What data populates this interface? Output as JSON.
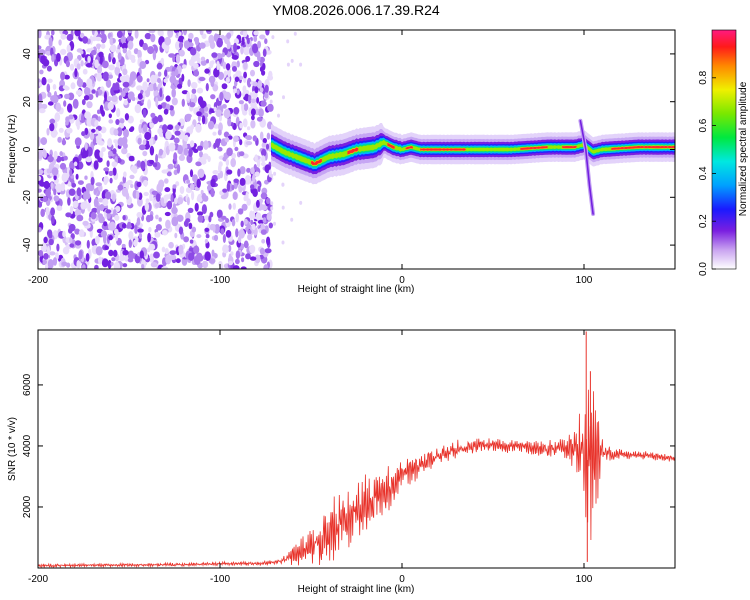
{
  "figure": {
    "title": "YM08.2026.006.17.39.R24"
  },
  "colorbar": {
    "label": "Normalized spectral amplitude",
    "range": [
      0,
      1
    ],
    "ticks": [
      "0.0",
      "0.2",
      "0.4",
      "0.6",
      "0.8"
    ],
    "tick_values": [
      0.0,
      0.2,
      0.4,
      0.6,
      0.8
    ]
  },
  "chart_data": [
    {
      "type": "heatmap",
      "xlabel": "Height of straight line (km)",
      "ylabel": "Frequency (Hz)",
      "xlim": [
        -200,
        150
      ],
      "ylim": [
        -50,
        50
      ],
      "xticks": [
        "-200",
        "-100",
        "0",
        "100"
      ],
      "xtick_values": [
        -200,
        -100,
        0,
        100
      ],
      "yticks": [
        "-40",
        "-20",
        "0",
        "20",
        "40"
      ],
      "ytick_values": [
        -40,
        -20,
        0,
        20,
        40
      ],
      "noise_region_x": [
        -200,
        -72
      ],
      "ridge": {
        "x": [
          -72,
          -65,
          -55,
          -48,
          -40,
          -32,
          -25,
          -15,
          -10,
          -5,
          0,
          5,
          10,
          20,
          40,
          60,
          80,
          95,
          100,
          105,
          110,
          130,
          150
        ],
        "freq": [
          2,
          -1,
          -4,
          -6,
          -3,
          -2,
          0,
          1,
          3,
          1,
          0,
          1,
          0,
          0,
          0,
          0,
          1,
          1,
          2,
          -1,
          0,
          1,
          1
        ]
      },
      "spur": {
        "x": [
          98,
          101,
          103,
          105
        ],
        "freq": [
          12,
          0,
          -15,
          -27
        ]
      }
    },
    {
      "type": "line",
      "xlabel": "Height of straight line (km)",
      "ylabel": "SNR (10 * v/v)",
      "xlim": [
        -200,
        150
      ],
      "ylim": [
        0,
        7800
      ],
      "xticks": [
        "-200",
        "-100",
        "0",
        "100"
      ],
      "xtick_values": [
        -200,
        -100,
        0,
        100
      ],
      "yticks": [
        "2000",
        "4000",
        "6000"
      ],
      "ytick_values": [
        2000,
        4000,
        6000
      ],
      "color": "#e8322a",
      "envelope": {
        "x": [
          -200,
          -120,
          -75,
          -65,
          -60,
          -50,
          -40,
          -30,
          -20,
          -10,
          0,
          10,
          20,
          30,
          40,
          50,
          60,
          70,
          80,
          90,
          95,
          100,
          103,
          105,
          108,
          110,
          115,
          120,
          130,
          140,
          150
        ],
        "mean": [
          80,
          110,
          160,
          250,
          400,
          700,
          1100,
          1600,
          2100,
          2500,
          3000,
          3400,
          3700,
          3900,
          4000,
          4050,
          4000,
          3950,
          3900,
          4000,
          3900,
          3600,
          3500,
          3700,
          3800,
          3800,
          3700,
          3700,
          3700,
          3650,
          3600
        ],
        "amp": [
          60,
          60,
          80,
          150,
          350,
          700,
          1100,
          1200,
          1100,
          900,
          600,
          450,
          350,
          300,
          250,
          250,
          250,
          250,
          300,
          450,
          900,
          2500,
          3500,
          2500,
          1500,
          600,
          250,
          200,
          150,
          150,
          150
        ]
      },
      "spikes": [
        {
          "x": 101.2,
          "y": 7750
        },
        {
          "x": 101.8,
          "y": 200
        },
        {
          "x": 103.5,
          "y": 6450
        }
      ]
    }
  ]
}
